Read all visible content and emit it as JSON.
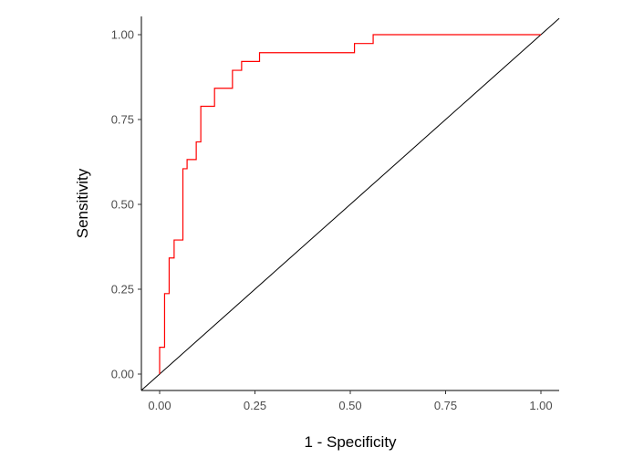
{
  "chart_data": {
    "type": "line",
    "title": "",
    "xlabel": "1 - Specificity",
    "ylabel": "Sensitivity",
    "xlim": [
      -0.048,
      1.048
    ],
    "ylim": [
      -0.048,
      1.054
    ],
    "xticks": [
      "0.00",
      "0.25",
      "0.50",
      "0.75",
      "1.00"
    ],
    "yticks": [
      "0.00",
      "0.25",
      "0.50",
      "0.75",
      "1.00"
    ],
    "xtick_values": [
      0,
      0.25,
      0.5,
      0.75,
      1
    ],
    "ytick_values": [
      0,
      0.25,
      0.5,
      0.75,
      1
    ],
    "grid": false,
    "series": [
      {
        "name": "ROC curve",
        "color": "#ff0000",
        "step": true,
        "x": [
          0,
          0,
          0.013,
          0.013,
          0.025,
          0.025,
          0.038,
          0.038,
          0.061,
          0.061,
          0.072,
          0.072,
          0.096,
          0.096,
          0.108,
          0.108,
          0.144,
          0.144,
          0.191,
          0.191,
          0.215,
          0.215,
          0.262,
          0.262,
          0.511,
          0.511,
          0.56,
          0.56,
          1.0
        ],
        "y": [
          0,
          0.079,
          0.079,
          0.237,
          0.237,
          0.342,
          0.342,
          0.395,
          0.395,
          0.605,
          0.605,
          0.632,
          0.632,
          0.684,
          0.684,
          0.789,
          0.789,
          0.842,
          0.842,
          0.895,
          0.895,
          0.921,
          0.921,
          0.947,
          0.947,
          0.974,
          0.974,
          1.0,
          1.0
        ]
      },
      {
        "name": "reference diagonal",
        "color": "#000000",
        "x": [
          -0.048,
          1.048
        ],
        "y": [
          -0.048,
          1.048
        ]
      }
    ]
  }
}
